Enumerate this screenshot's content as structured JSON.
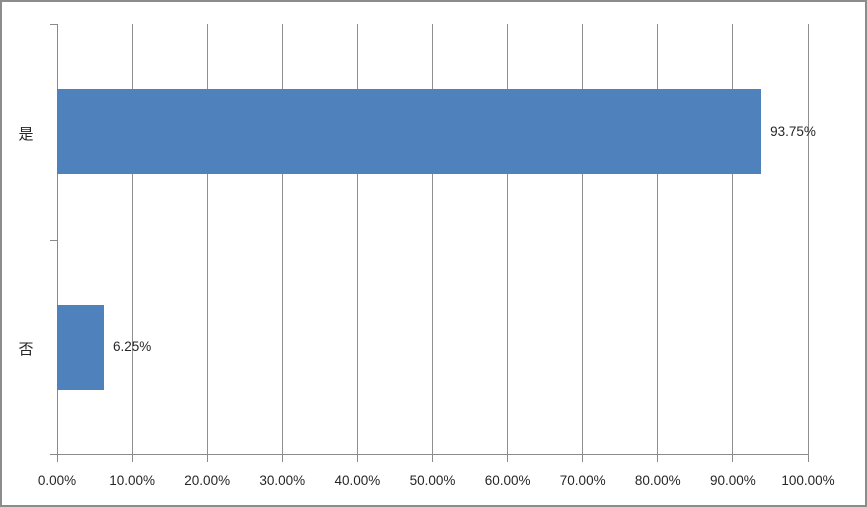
{
  "chart_data": {
    "type": "bar",
    "orientation": "horizontal",
    "title": "",
    "xlabel": "",
    "ylabel": "",
    "categories": [
      "是",
      "否"
    ],
    "values": [
      93.75,
      6.25
    ],
    "value_labels": [
      "93.75%",
      "6.25%"
    ],
    "x_tick_values": [
      0,
      10,
      20,
      30,
      40,
      50,
      60,
      70,
      80,
      90,
      100
    ],
    "x_tick_labels": [
      "0.00%",
      "10.00%",
      "20.00%",
      "30.00%",
      "40.00%",
      "50.00%",
      "60.00%",
      "70.00%",
      "80.00%",
      "90.00%",
      "100.00%"
    ],
    "xlim": [
      0,
      100
    ],
    "grid": true,
    "legend": "none",
    "colors": {
      "bar": "#4F81BD",
      "gridline": "#8f8f8f",
      "axis": "#8a8a8a",
      "text": "#262626",
      "frame_border": "#8c8c8c",
      "background": "#ffffff"
    }
  }
}
